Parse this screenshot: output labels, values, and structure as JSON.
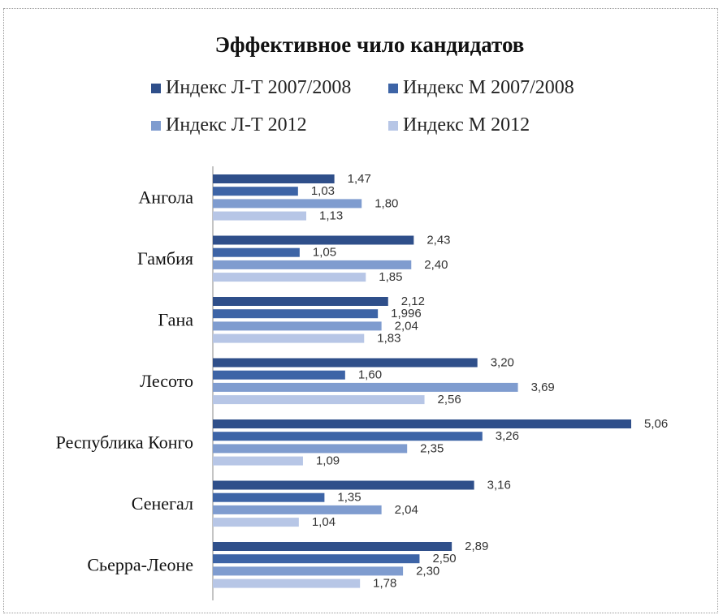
{
  "chart_data": {
    "type": "bar",
    "orientation": "horizontal",
    "title": "Эффективное чило кандидатов",
    "categories": [
      "Ангола",
      "Гамбия",
      "Гана",
      "Лесото",
      "Республика Конго",
      "Сенегал",
      "Сьерра-Леоне"
    ],
    "series": [
      {
        "name": "Индекс Л-Т 2007/2008",
        "color": "#2f4f8a",
        "values": [
          1.47,
          2.43,
          2.12,
          3.2,
          5.06,
          3.16,
          2.89
        ],
        "labels": [
          "1,47",
          "2,43",
          "2,12",
          "3,20",
          "5,06",
          "3,16",
          "2,89"
        ]
      },
      {
        "name": "Индекс М 2007/2008",
        "color": "#3d64a6",
        "values": [
          1.03,
          1.05,
          1.996,
          1.6,
          3.26,
          1.35,
          2.5
        ],
        "labels": [
          "1,03",
          "1,05",
          "1,996",
          "1,60",
          "3,26",
          "1,35",
          "2,50"
        ]
      },
      {
        "name": "Индекс Л-Т 2012",
        "color": "#7f9ccf",
        "values": [
          1.8,
          2.4,
          2.04,
          3.69,
          2.35,
          2.04,
          2.3
        ],
        "labels": [
          "1,80",
          "2,40",
          "2,04",
          "3,69",
          "2,35",
          "2,04",
          "2,30"
        ]
      },
      {
        "name": "Индекс М 2012",
        "color": "#b7c6e6",
        "values": [
          1.13,
          1.85,
          1.83,
          2.56,
          1.09,
          1.04,
          1.78
        ],
        "labels": [
          "1,13",
          "1,85",
          "1,83",
          "2,56",
          "1,09",
          "1,04",
          "1,78"
        ]
      }
    ],
    "xlim": [
      0,
      5.1
    ],
    "grid": false,
    "legend_position": "top"
  }
}
